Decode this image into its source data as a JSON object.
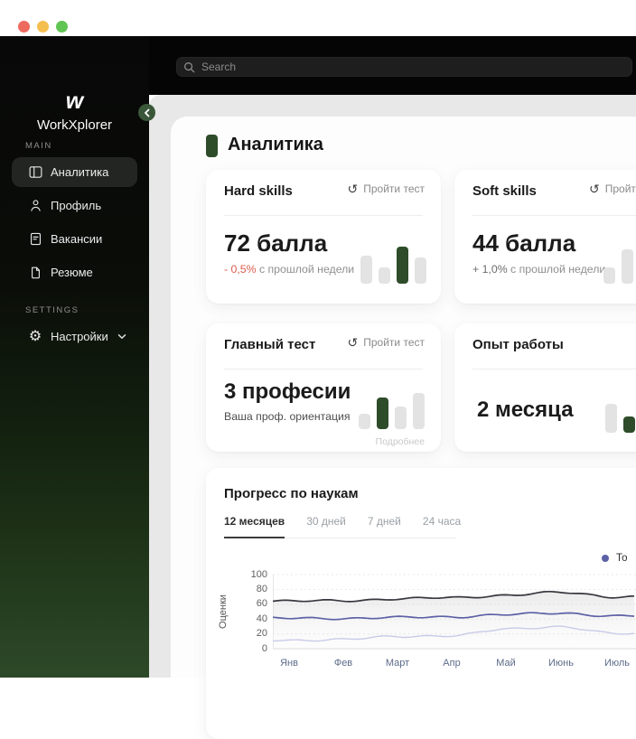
{
  "window": {
    "traffic_lights": [
      {
        "name": "close",
        "color": "#ed6a5f"
      },
      {
        "name": "minimize",
        "color": "#f5bf4f"
      },
      {
        "name": "zoom",
        "color": "#61c554"
      }
    ]
  },
  "sidebar": {
    "logo_glyph": "w",
    "brand": "WorkXplorer",
    "collapse_chevron": "left",
    "sections": [
      {
        "label": "MAIN",
        "items": [
          {
            "key": "analytics",
            "label": "Аналитика",
            "icon": "panel-layout-icon",
            "active": true,
            "chevron": false
          },
          {
            "key": "profile",
            "label": "Профиль",
            "icon": "user-icon",
            "active": false,
            "chevron": false
          },
          {
            "key": "vacancies",
            "label": "Вакансии",
            "icon": "document-lines-icon",
            "active": false,
            "chevron": false
          },
          {
            "key": "resume",
            "label": "Резюме",
            "icon": "document-icon",
            "active": false,
            "chevron": false
          }
        ]
      },
      {
        "label": "SETTINGS",
        "items": [
          {
            "key": "settings",
            "label": "Настройки",
            "icon": "gear-icon",
            "active": false,
            "chevron": true
          }
        ]
      }
    ]
  },
  "topbar": {
    "search_placeholder": "Search"
  },
  "page": {
    "title": "Аналитика"
  },
  "cards": {
    "hard_skills": {
      "title": "Hard skills",
      "action_label": "Пройти тест",
      "value": "72 балла",
      "delta": "- 0,5%",
      "delta_rest": " с прошлой недели",
      "delta_color": "#dc5c4e",
      "bars": {
        "values": [
          31,
          18,
          41,
          29
        ],
        "highlight_index": 2
      }
    },
    "soft_skills": {
      "title": "Soft skills",
      "action_label": "Пройти тест",
      "value": "44 балла",
      "delta": "+ 1,0%",
      "delta_rest": " с прошлой недели",
      "delta_color": "#6d6d6d",
      "bars": {
        "values": [
          18,
          38
        ],
        "highlight_index": -1
      }
    },
    "main_test": {
      "title": "Главный тест",
      "action_label": "Пройти тест",
      "value": "3 професии",
      "subtitle": "Ваша проф. ориентация",
      "more_link": "Подробнее",
      "bars": {
        "values": [
          17,
          35,
          25,
          40
        ],
        "highlight_index": 1
      }
    },
    "experience": {
      "title": "Опыт работы",
      "value": "2 месяца",
      "bars": {
        "values": [
          32,
          18
        ],
        "highlight_index": 1
      }
    }
  },
  "progress_card": {
    "title": "Прогресс по наукам",
    "tabs": [
      {
        "key": "12m",
        "label": "12 месяцев",
        "active": true
      },
      {
        "key": "30d",
        "label": "30 дней",
        "active": false
      },
      {
        "key": "7d",
        "label": "7 дней",
        "active": false
      },
      {
        "key": "24h",
        "label": "24 часа",
        "active": false
      }
    ],
    "legend": [
      {
        "label": "То",
        "color": "#5c61a6"
      }
    ]
  },
  "chart_data": {
    "type": "area",
    "title": "Прогресс по наукам",
    "ylabel": "Оценки",
    "x": [
      "Янв",
      "Фев",
      "Март",
      "Апр",
      "Май",
      "Июнь",
      "Июль"
    ],
    "yticks": [
      0,
      20,
      40,
      60,
      80,
      100
    ],
    "ylim": [
      0,
      100
    ],
    "grid": "horizontal-dotted",
    "legend_position": "top-right",
    "series": [
      {
        "name": "series-dark",
        "color": "#37373f",
        "area_fill": true,
        "values": [
          64,
          65,
          67,
          69,
          72,
          76,
          70
        ]
      },
      {
        "name": "series-indigo",
        "color": "#5c61a6",
        "area_fill": false,
        "values": [
          41,
          41,
          42,
          43,
          46,
          48,
          44
        ]
      },
      {
        "name": "series-light",
        "color": "#c9cbe8",
        "area_fill": false,
        "values": [
          11,
          13,
          16,
          18,
          26,
          30,
          20
        ]
      }
    ]
  },
  "colors": {
    "accent_green": "#2e4c2a",
    "sidebar_active_bg": "#232523",
    "bar_gray": "#e3e3e3",
    "topbar_black": "#050505",
    "delta_negative": "#dc5c4e",
    "legend_dot": "#5c61a6"
  }
}
